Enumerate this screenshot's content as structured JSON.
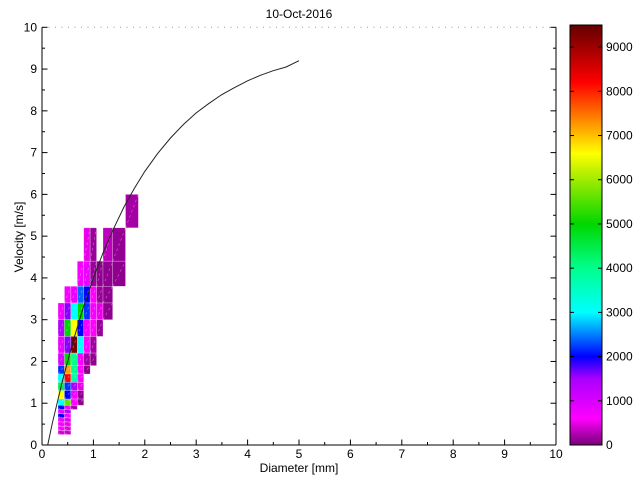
{
  "title": "10-Oct-2016",
  "x_axis_label": "Diameter [mm]",
  "y_axis_label": "Velocity [m/s]",
  "chart_data": {
    "type": "heatmap",
    "title": "10-Oct-2016",
    "xlabel": "Diameter [mm]",
    "ylabel": "Velocity [m/s]",
    "xlim": [
      0,
      10
    ],
    "ylim": [
      0,
      10
    ],
    "x_ticks": [
      0,
      1,
      2,
      3,
      4,
      5,
      6,
      7,
      8,
      9,
      10
    ],
    "y_ticks": [
      0,
      1,
      2,
      3,
      4,
      5,
      6,
      7,
      8,
      9,
      10
    ],
    "x_minor_step": 0.5,
    "y_minor_step": 0.5,
    "grid": "off",
    "legend": "none",
    "diameter_bin_edges_mm": [
      0.312,
      0.437,
      0.562,
      0.687,
      0.812,
      0.937,
      1.062,
      1.187,
      1.375,
      1.625,
      1.875
    ],
    "velocity_bin_edges_ms": [
      0.25,
      0.35,
      0.45,
      0.55,
      0.65,
      0.75,
      0.85,
      0.95,
      1.1,
      1.3,
      1.5,
      1.7,
      1.9,
      2.2,
      2.6,
      3.0,
      3.4,
      3.8,
      4.4,
      5.2,
      6.0
    ],
    "cells_format": [
      "d_min_mm",
      "d_max_mm",
      "v_min_ms",
      "v_max_ms",
      "count"
    ],
    "cells": [
      [
        1.625,
        1.875,
        5.2,
        6.0,
        200
      ],
      [
        0.812,
        0.937,
        4.4,
        5.2,
        500
      ],
      [
        0.937,
        1.062,
        4.4,
        5.2,
        150
      ],
      [
        1.187,
        1.375,
        4.4,
        5.2,
        300
      ],
      [
        1.375,
        1.625,
        4.4,
        5.2,
        120
      ],
      [
        0.687,
        0.812,
        3.8,
        4.4,
        700
      ],
      [
        0.812,
        0.937,
        3.8,
        4.4,
        800
      ],
      [
        0.937,
        1.062,
        3.8,
        4.4,
        150
      ],
      [
        1.062,
        1.187,
        3.8,
        4.4,
        100
      ],
      [
        1.187,
        1.375,
        3.8,
        4.4,
        100
      ],
      [
        1.375,
        1.625,
        3.8,
        4.4,
        100
      ],
      [
        0.437,
        0.562,
        3.4,
        3.8,
        700
      ],
      [
        0.562,
        0.687,
        3.4,
        3.8,
        800
      ],
      [
        0.687,
        0.812,
        3.4,
        3.8,
        2400
      ],
      [
        0.812,
        0.937,
        3.4,
        3.8,
        2000
      ],
      [
        0.937,
        1.062,
        3.4,
        3.8,
        600
      ],
      [
        1.062,
        1.187,
        3.4,
        3.8,
        150
      ],
      [
        1.187,
        1.375,
        3.4,
        3.8,
        100
      ],
      [
        0.312,
        0.437,
        3.0,
        3.4,
        700
      ],
      [
        0.437,
        0.562,
        3.0,
        3.4,
        1600
      ],
      [
        0.562,
        0.687,
        3.0,
        3.4,
        3000
      ],
      [
        0.687,
        0.812,
        3.0,
        3.4,
        5000
      ],
      [
        0.812,
        0.937,
        3.0,
        3.4,
        2200
      ],
      [
        0.937,
        1.062,
        3.0,
        3.4,
        700
      ],
      [
        1.062,
        1.187,
        3.0,
        3.4,
        500
      ],
      [
        1.187,
        1.375,
        3.0,
        3.4,
        100
      ],
      [
        0.312,
        0.437,
        2.6,
        3.0,
        1400
      ],
      [
        0.437,
        0.562,
        2.6,
        3.0,
        5000
      ],
      [
        0.562,
        0.687,
        2.6,
        3.0,
        6600
      ],
      [
        0.687,
        0.812,
        2.6,
        3.0,
        2000
      ],
      [
        0.812,
        0.937,
        2.6,
        3.0,
        700
      ],
      [
        0.937,
        1.062,
        2.6,
        3.0,
        600
      ],
      [
        1.062,
        1.187,
        2.6,
        3.0,
        150
      ],
      [
        0.312,
        0.437,
        2.2,
        2.6,
        800
      ],
      [
        0.437,
        0.562,
        2.2,
        2.6,
        1600
      ],
      [
        0.562,
        0.687,
        2.2,
        2.6,
        9300
      ],
      [
        0.687,
        0.812,
        2.2,
        2.6,
        3000
      ],
      [
        0.812,
        0.937,
        2.2,
        2.6,
        600
      ],
      [
        0.937,
        1.062,
        2.2,
        2.6,
        200
      ],
      [
        0.312,
        0.437,
        1.9,
        2.2,
        1000
      ],
      [
        0.437,
        0.562,
        1.9,
        2.2,
        5000
      ],
      [
        0.562,
        0.687,
        1.9,
        2.2,
        4000
      ],
      [
        0.687,
        0.812,
        1.9,
        2.2,
        700
      ],
      [
        0.812,
        0.937,
        1.9,
        2.2,
        200
      ],
      [
        0.937,
        1.062,
        1.9,
        2.2,
        100
      ],
      [
        0.312,
        0.437,
        1.7,
        1.9,
        2200
      ],
      [
        0.437,
        0.562,
        1.7,
        1.9,
        7200
      ],
      [
        0.562,
        0.687,
        1.7,
        1.9,
        4000
      ],
      [
        0.687,
        0.812,
        1.7,
        1.9,
        600
      ],
      [
        0.812,
        0.937,
        1.7,
        1.9,
        80
      ],
      [
        0.312,
        0.437,
        1.5,
        1.7,
        3000
      ],
      [
        0.437,
        0.562,
        1.5,
        1.7,
        8200
      ],
      [
        0.562,
        0.687,
        1.5,
        1.7,
        3800
      ],
      [
        0.687,
        0.812,
        1.5,
        1.7,
        600
      ],
      [
        0.312,
        0.437,
        1.3,
        1.5,
        4400
      ],
      [
        0.437,
        0.562,
        1.3,
        1.5,
        2200
      ],
      [
        0.562,
        0.687,
        1.3,
        1.5,
        1500
      ],
      [
        0.687,
        0.812,
        1.3,
        1.5,
        500
      ],
      [
        0.312,
        0.437,
        1.1,
        1.3,
        6600
      ],
      [
        0.437,
        0.562,
        1.1,
        1.3,
        2000
      ],
      [
        0.562,
        0.687,
        1.1,
        1.3,
        700
      ],
      [
        0.687,
        0.812,
        1.1,
        1.3,
        100
      ],
      [
        0.312,
        0.437,
        0.95,
        1.1,
        3000
      ],
      [
        0.437,
        0.562,
        0.95,
        1.1,
        5600
      ],
      [
        0.562,
        0.687,
        0.95,
        1.1,
        600
      ],
      [
        0.687,
        0.812,
        0.95,
        1.1,
        100
      ],
      [
        0.312,
        0.437,
        0.85,
        0.95,
        2000
      ],
      [
        0.437,
        0.562,
        0.85,
        0.95,
        800
      ],
      [
        0.562,
        0.687,
        0.85,
        0.95,
        200
      ],
      [
        0.312,
        0.437,
        0.75,
        0.85,
        900
      ],
      [
        0.437,
        0.562,
        0.75,
        0.85,
        1400
      ],
      [
        0.312,
        0.437,
        0.65,
        0.75,
        2000
      ],
      [
        0.437,
        0.562,
        0.65,
        0.75,
        700
      ],
      [
        0.312,
        0.437,
        0.55,
        0.65,
        800
      ],
      [
        0.437,
        0.562,
        0.55,
        0.65,
        1000
      ],
      [
        0.312,
        0.437,
        0.45,
        0.55,
        700
      ],
      [
        0.437,
        0.562,
        0.45,
        0.55,
        500
      ],
      [
        0.312,
        0.437,
        0.35,
        0.45,
        600
      ],
      [
        0.437,
        0.562,
        0.35,
        0.45,
        500
      ],
      [
        0.312,
        0.437,
        0.25,
        0.35,
        400
      ],
      [
        0.437,
        0.562,
        0.25,
        0.35,
        350
      ]
    ],
    "fit_curve": {
      "name": "terminal-velocity-curve",
      "points": [
        [
          0.11,
          0.0
        ],
        [
          0.2,
          0.52
        ],
        [
          0.4,
          1.55
        ],
        [
          0.6,
          2.46
        ],
        [
          0.8,
          3.28
        ],
        [
          1.0,
          4.0
        ],
        [
          1.2,
          4.64
        ],
        [
          1.4,
          5.2
        ],
        [
          1.6,
          5.71
        ],
        [
          1.8,
          6.15
        ],
        [
          2.0,
          6.55
        ],
        [
          2.25,
          6.98
        ],
        [
          2.5,
          7.35
        ],
        [
          2.75,
          7.67
        ],
        [
          3.0,
          7.95
        ],
        [
          3.25,
          8.18
        ],
        [
          3.5,
          8.39
        ],
        [
          3.75,
          8.56
        ],
        [
          4.0,
          8.72
        ],
        [
          4.25,
          8.85
        ],
        [
          4.5,
          8.96
        ],
        [
          4.75,
          9.05
        ],
        [
          5.0,
          9.2
        ]
      ]
    },
    "colorbar": {
      "min": 0,
      "max": 9500,
      "tick_labels": [
        0,
        1000,
        2000,
        3000,
        4000,
        5000,
        6000,
        7000,
        8000,
        9000
      ]
    },
    "colormap_stops": [
      [
        0,
        [
          120,
          0,
          120
        ]
      ],
      [
        600,
        [
          255,
          0,
          255
        ]
      ],
      [
        1500,
        [
          170,
          0,
          255
        ]
      ],
      [
        2000,
        [
          0,
          0,
          255
        ]
      ],
      [
        3000,
        [
          0,
          255,
          255
        ]
      ],
      [
        4000,
        [
          0,
          255,
          140
        ]
      ],
      [
        5000,
        [
          0,
          215,
          0
        ]
      ],
      [
        6000,
        [
          160,
          235,
          0
        ]
      ],
      [
        6600,
        [
          255,
          255,
          0
        ]
      ],
      [
        7200,
        [
          255,
          160,
          0
        ]
      ],
      [
        8200,
        [
          255,
          0,
          0
        ]
      ],
      [
        9500,
        [
          100,
          0,
          0
        ]
      ]
    ]
  }
}
